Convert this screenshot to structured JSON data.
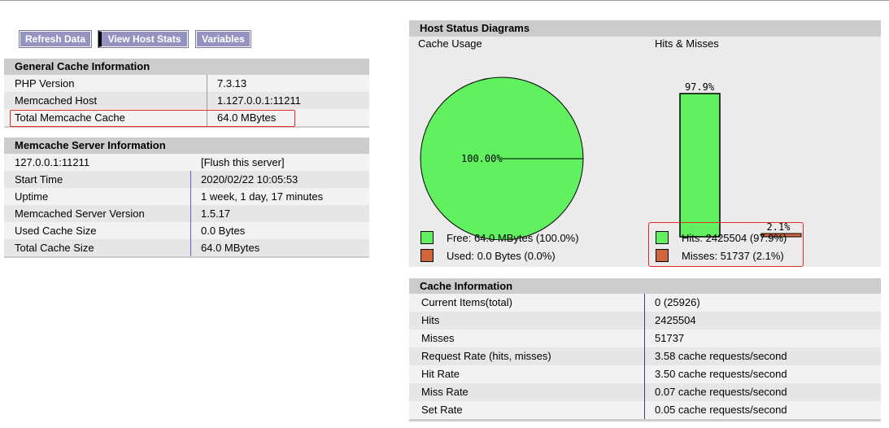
{
  "nav": {
    "refresh_label": "Refresh Data",
    "host_stats_label": "View Host Stats",
    "variables_label": "Variables"
  },
  "general": {
    "title": "General Cache Information",
    "rows": [
      {
        "k": "PHP Version",
        "v": "7.3.13"
      },
      {
        "k": "Memcached Host",
        "v": "1.127.0.0.1:11211"
      },
      {
        "k": "Total Memcache Cache",
        "v": "64.0 MBytes"
      }
    ]
  },
  "server": {
    "title": "Memcache Server Information",
    "host": "127.0.0.1:11211",
    "flush_label": "[Flush this server]",
    "rows": [
      {
        "k": "Start Time",
        "v": "2020/02/22 10:05:53"
      },
      {
        "k": "Uptime",
        "v": "1 week, 1 day, 17 minutes"
      },
      {
        "k": "Memcached Server Version",
        "v": "1.5.17"
      },
      {
        "k": "Used Cache Size",
        "v": "0.0 Bytes"
      },
      {
        "k": "Total Cache Size",
        "v": "64.0 MBytes"
      }
    ]
  },
  "diagrams": {
    "title": "Host Status Diagrams",
    "cache_usage_label": "Cache Usage",
    "hits_misses_label": "Hits & Misses",
    "pie_label": "100.00%",
    "hits_pct_label": "97.9%",
    "misses_pct_label": "2.1%",
    "legend_free": "Free: 64.0 MBytes (100.0%)",
    "legend_used": "Used: 0.0 Bytes (0.0%)",
    "legend_hits": "Hits: 2425504 (97.9%)",
    "legend_misses": "Misses: 51737 (2.1%)",
    "colors": {
      "green": "#60f060",
      "orange": "#d2643c"
    }
  },
  "chart_data": [
    {
      "type": "pie",
      "title": "Cache Usage",
      "slices": [
        {
          "name": "Free",
          "value": 100.0
        },
        {
          "name": "Used",
          "value": 0.0
        }
      ]
    },
    {
      "type": "bar",
      "title": "Hits & Misses",
      "categories": [
        "Hits",
        "Misses"
      ],
      "values": [
        97.9,
        2.1
      ]
    }
  ],
  "cacheinfo": {
    "title": "Cache Information",
    "rows": [
      {
        "k": "Current Items(total)",
        "v": "0 (25926)"
      },
      {
        "k": "Hits",
        "v": "2425504"
      },
      {
        "k": "Misses",
        "v": "51737"
      },
      {
        "k": "Request Rate (hits, misses)",
        "v": "3.58 cache requests/second"
      },
      {
        "k": "Hit Rate",
        "v": "3.50 cache requests/second"
      },
      {
        "k": "Miss Rate",
        "v": "0.07 cache requests/second"
      },
      {
        "k": "Set Rate",
        "v": "0.05 cache requests/second"
      }
    ]
  }
}
